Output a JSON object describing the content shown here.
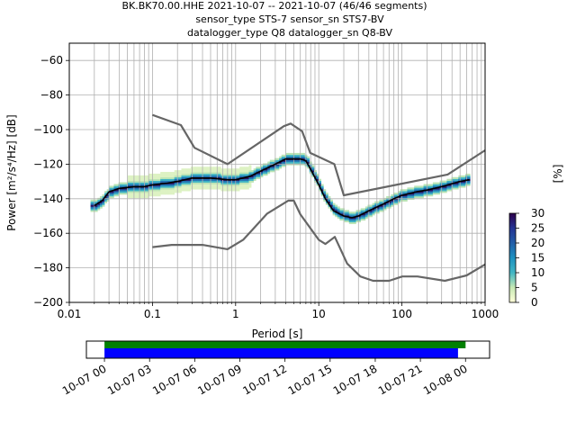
{
  "title": {
    "line1": "BK.BK70.00.HHE   2021-10-07 -- 2021-10-07  (46/46 segments)",
    "line2": "sensor_type STS-7 sensor_sn STS7-BV",
    "line3": "datalogger_type Q8 datalogger_sn Q8-BV"
  },
  "chart_data": [
    {
      "type": "heatmap",
      "xlabel": "Period [s]",
      "ylabel": "Power [m²/s⁴/Hz] [dB]",
      "x_scale": "log",
      "xlim": [
        0.01,
        1000
      ],
      "ylim": [
        -200,
        -50
      ],
      "x_ticks": [
        "0.01",
        "0.1",
        "1",
        "10",
        "100",
        "1000"
      ],
      "y_ticks": [
        "−200",
        "−180",
        "−160",
        "−140",
        "−120",
        "−100",
        "−80",
        "−60"
      ],
      "grid": true,
      "colorbar": {
        "label": "[%]",
        "min": 0,
        "max": 30,
        "ticks": [
          "0",
          "5",
          "10",
          "15",
          "20",
          "25",
          "30"
        ],
        "colormap": [
          "#ffffd9",
          "#c7e9b4",
          "#41b6c4",
          "#1d91c0",
          "#225ea8",
          "#253494",
          "#2d004b"
        ]
      },
      "series": [
        {
          "name": "",
          "role": "mean PSD",
          "color": "#000000",
          "x": [
            0.02,
            0.025,
            0.03,
            0.04,
            0.06,
            0.08,
            0.1,
            0.15,
            0.2,
            0.3,
            0.5,
            0.8,
            1.0,
            1.5,
            2,
            3,
            4,
            5,
            6,
            7,
            8,
            10,
            12,
            15,
            20,
            25,
            30,
            40,
            60,
            80,
            100,
            150,
            200,
            300,
            500,
            650
          ],
          "y": [
            -144,
            -141,
            -136,
            -134,
            -133,
            -133,
            -132,
            -131,
            -130,
            -128,
            -128,
            -129,
            -129,
            -127,
            -124,
            -120,
            -117,
            -117,
            -117,
            -118,
            -123,
            -132,
            -140,
            -147,
            -150,
            -151,
            -150,
            -147,
            -143,
            -140,
            -138,
            -136,
            -135,
            -133,
            -130,
            -129
          ]
        },
        {
          "name": "",
          "role": "high noise model",
          "color": "#666666",
          "x": [
            0.1,
            0.22,
            0.32,
            0.8,
            3.8,
            4.6,
            6.3,
            7.9,
            15.4,
            20,
            354.8,
            1000
          ],
          "y": [
            -91.5,
            -97.4,
            -110.5,
            -120,
            -98,
            -96.5,
            -101,
            -113.5,
            -120,
            -138,
            -126,
            -112
          ]
        },
        {
          "name": "",
          "role": "low noise model",
          "color": "#666666",
          "x": [
            0.1,
            0.17,
            0.4,
            0.8,
            1.24,
            2.4,
            4.3,
            5.0,
            6.0,
            10,
            12,
            15.6,
            21.9,
            31.6,
            45,
            70,
            101,
            154,
            328,
            600,
            1000
          ],
          "y": [
            -168,
            -166.7,
            -166.7,
            -169.2,
            -163.7,
            -148.6,
            -141.1,
            -141.1,
            -149,
            -163.8,
            -166.2,
            -162.1,
            -177.5,
            -185,
            -187.5,
            -187.5,
            -185,
            -185,
            -187.5,
            -184.4,
            -178
          ]
        }
      ]
    },
    {
      "type": "bar",
      "x_ticks": [
        "10-07 00",
        "10-07 03",
        "10-07 06",
        "10-07 09",
        "10-07 12",
        "10-07 15",
        "10-07 18",
        "10-07 21",
        "10-08 00"
      ],
      "xlim_hours": [
        -1.2,
        25.6
      ],
      "series": [
        {
          "name": "",
          "role": "data availability",
          "color": "#008000",
          "start_hours": 0,
          "end_hours": 24.0
        },
        {
          "name": "",
          "role": "segments used",
          "color": "#0000ff",
          "start_hours": 0,
          "end_hours": 23.5
        }
      ]
    }
  ]
}
